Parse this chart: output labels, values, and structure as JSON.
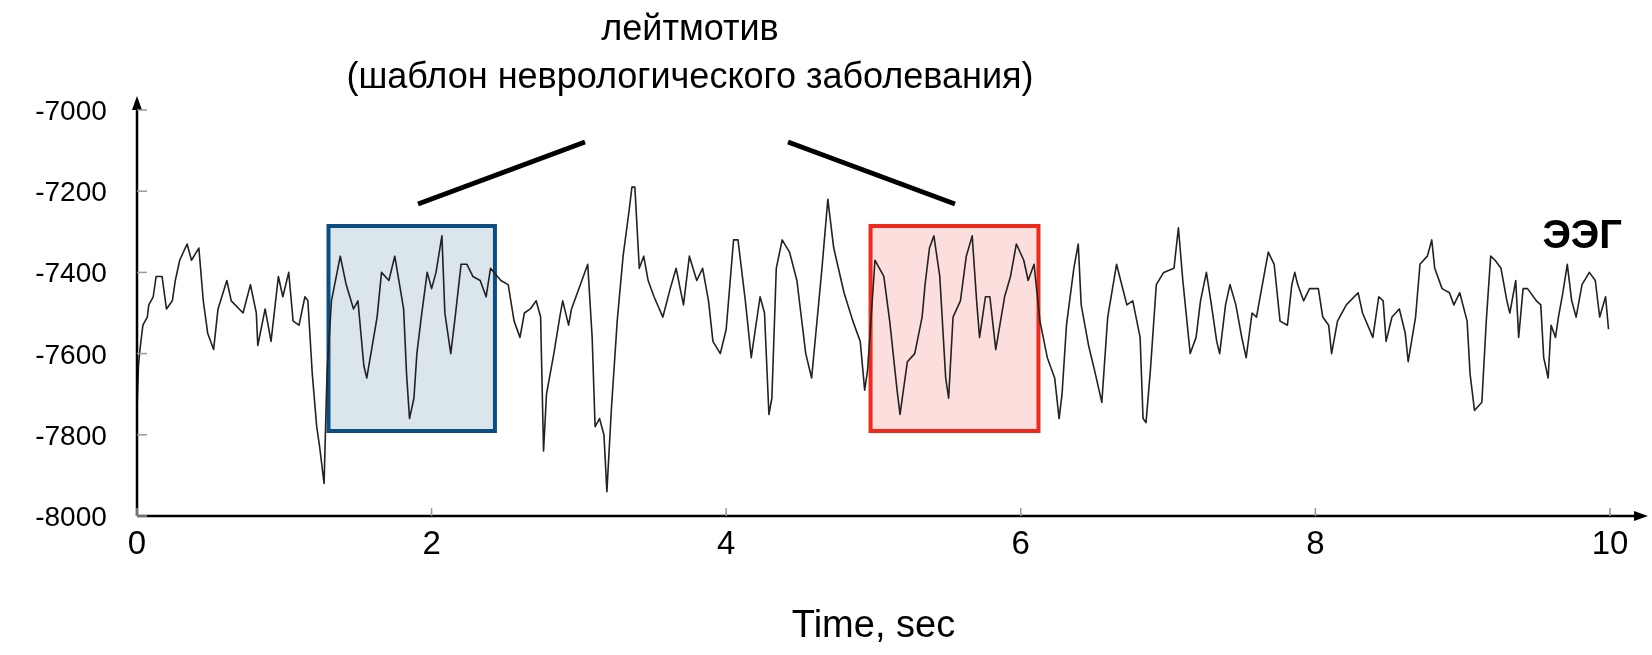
{
  "chart_data": {
    "type": "line",
    "xlabel": "Time, sec",
    "annotations": [
      "лейтмотив",
      "(шаблон неврологического заболевания)"
    ],
    "xlim": [
      0,
      10
    ],
    "xticks": [
      0,
      2,
      4,
      6,
      8,
      10
    ],
    "ylim": [
      -8000,
      -7000
    ],
    "yticks": [
      -7000,
      -7200,
      -7400,
      -7600,
      -7800,
      -8000
    ],
    "bands": [
      {
        "axis": "x",
        "from": 1.3,
        "to": 2.43,
        "color": "#0b4f82"
      },
      {
        "axis": "x",
        "from": 4.98,
        "to": 6.12,
        "color": "#ee2a1c"
      }
    ],
    "series": [
      {
        "name": "ЭЭГ",
        "color": "#222222",
        "x": [
          0,
          0.01,
          0.02,
          0.04,
          0.07,
          0.08,
          0.11,
          0.13,
          0.17,
          0.2,
          0.24,
          0.26,
          0.29,
          0.34,
          0.37,
          0.42,
          0.45,
          0.48,
          0.52,
          0.55,
          0.61,
          0.64,
          0.72,
          0.77,
          0.81,
          0.82,
          0.87,
          0.91,
          0.96,
          0.99,
          1.03,
          1.06,
          1.1,
          1.14,
          1.16,
          1.19,
          1.22,
          1.24,
          1.27,
          1.29,
          1.32,
          1.38,
          1.42,
          1.47,
          1.5,
          1.54,
          1.56,
          1.63,
          1.66,
          1.71,
          1.75,
          1.81,
          1.83,
          1.85,
          1.88,
          1.9,
          1.93,
          1.97,
          2,
          2.03,
          2.07,
          2.09,
          2.13,
          2.16,
          2.2,
          2.24,
          2.28,
          2.33,
          2.37,
          2.4,
          2.47,
          2.52,
          2.56,
          2.6,
          2.63,
          2.67,
          2.71,
          2.74,
          2.76,
          2.78,
          2.83,
          2.87,
          2.89,
          2.93,
          2.95,
          3.03,
          3.06,
          3.09,
          3.11,
          3.14,
          3.17,
          3.19,
          3.22,
          3.26,
          3.3,
          3.34,
          3.36,
          3.38,
          3.41,
          3.44,
          3.47,
          3.51,
          3.57,
          3.62,
          3.66,
          3.71,
          3.75,
          3.8,
          3.84,
          3.88,
          3.91,
          3.96,
          4,
          4.05,
          4.08,
          4.13,
          4.17,
          4.23,
          4.26,
          4.29,
          4.31,
          4.34,
          4.38,
          4.43,
          4.48,
          4.54,
          4.58,
          4.65,
          4.69,
          4.73,
          4.8,
          4.86,
          4.91,
          4.94,
          4.96,
          5.01,
          5.07,
          5.11,
          5.16,
          5.18,
          5.23,
          5.28,
          5.33,
          5.35,
          5.38,
          5.41,
          5.45,
          5.49,
          5.51,
          5.54,
          5.59,
          5.63,
          5.67,
          5.7,
          5.72,
          5.76,
          5.79,
          5.83,
          5.89,
          5.93,
          5.97,
          6.02,
          6.05,
          6.09,
          6.13,
          6.18,
          6.23,
          6.26,
          6.28,
          6.31,
          6.36,
          6.39,
          6.41,
          6.46,
          6.5,
          6.55,
          6.59,
          6.65,
          6.72,
          6.76,
          6.81,
          6.83,
          6.85,
          6.88,
          6.92,
          6.97,
          7.04,
          7.07,
          7.1,
          7.15,
          7.19,
          7.22,
          7.26,
          7.29,
          7.33,
          7.35,
          7.39,
          7.42,
          7.46,
          7.5,
          7.53,
          7.57,
          7.6,
          7.63,
          7.68,
          7.72,
          7.76,
          7.81,
          7.84,
          7.86,
          7.88,
          7.92,
          7.96,
          8.02,
          8.05,
          8.09,
          8.11,
          8.15,
          8.21,
          8.29,
          8.32,
          8.39,
          8.43,
          8.46,
          8.48,
          8.52,
          8.57,
          8.61,
          8.63,
          8.68,
          8.71,
          8.76,
          8.79,
          8.81,
          8.86,
          8.91,
          8.94,
          8.98,
          9.03,
          9.05,
          9.08,
          9.13,
          9.16,
          9.19,
          9.22,
          9.26,
          9.3,
          9.32,
          9.36,
          9.38,
          9.41,
          9.44,
          9.5,
          9.53,
          9.55,
          9.58,
          9.6,
          9.63,
          9.65,
          9.68,
          9.71,
          9.74,
          9.77,
          9.81,
          9.86,
          9.9,
          9.93,
          9.97,
          9.99
        ],
        "values": [
          -7740,
          -7630,
          -7590,
          -7530,
          -7510,
          -7480,
          -7460,
          -7410,
          -7410,
          -7490,
          -7470,
          -7420,
          -7370,
          -7330,
          -7370,
          -7340,
          -7470,
          -7550,
          -7590,
          -7490,
          -7420,
          -7470,
          -7500,
          -7430,
          -7500,
          -7580,
          -7490,
          -7570,
          -7410,
          -7460,
          -7400,
          -7520,
          -7530,
          -7460,
          -7470,
          -7650,
          -7780,
          -7830,
          -7920,
          -7650,
          -7470,
          -7360,
          -7430,
          -7490,
          -7470,
          -7630,
          -7660,
          -7510,
          -7400,
          -7420,
          -7360,
          -7490,
          -7650,
          -7760,
          -7710,
          -7600,
          -7510,
          -7400,
          -7440,
          -7400,
          -7310,
          -7500,
          -7600,
          -7510,
          -7380,
          -7380,
          -7410,
          -7420,
          -7460,
          -7390,
          -7420,
          -7430,
          -7520,
          -7560,
          -7500,
          -7490,
          -7470,
          -7510,
          -7840,
          -7700,
          -7600,
          -7510,
          -7470,
          -7530,
          -7490,
          -7410,
          -7380,
          -7560,
          -7780,
          -7760,
          -7800,
          -7940,
          -7740,
          -7520,
          -7360,
          -7250,
          -7190,
          -7190,
          -7390,
          -7360,
          -7420,
          -7460,
          -7510,
          -7440,
          -7390,
          -7480,
          -7360,
          -7420,
          -7390,
          -7470,
          -7570,
          -7600,
          -7540,
          -7320,
          -7320,
          -7470,
          -7610,
          -7460,
          -7500,
          -7750,
          -7710,
          -7390,
          -7320,
          -7350,
          -7420,
          -7600,
          -7660,
          -7390,
          -7220,
          -7340,
          -7450,
          -7520,
          -7570,
          -7690,
          -7640,
          -7370,
          -7410,
          -7520,
          -7690,
          -7750,
          -7620,
          -7600,
          -7510,
          -7430,
          -7340,
          -7310,
          -7410,
          -7660,
          -7710,
          -7510,
          -7470,
          -7360,
          -7310,
          -7470,
          -7560,
          -7460,
          -7460,
          -7590,
          -7460,
          -7410,
          -7330,
          -7370,
          -7420,
          -7380,
          -7520,
          -7610,
          -7660,
          -7760,
          -7700,
          -7530,
          -7390,
          -7330,
          -7480,
          -7580,
          -7640,
          -7720,
          -7510,
          -7380,
          -7480,
          -7470,
          -7560,
          -7760,
          -7770,
          -7640,
          -7430,
          -7400,
          -7390,
          -7290,
          -7420,
          -7600,
          -7560,
          -7470,
          -7400,
          -7470,
          -7570,
          -7600,
          -7480,
          -7430,
          -7480,
          -7560,
          -7610,
          -7500,
          -7510,
          -7450,
          -7350,
          -7380,
          -7520,
          -7530,
          -7430,
          -7400,
          -7430,
          -7470,
          -7440,
          -7440,
          -7510,
          -7530,
          -7600,
          -7520,
          -7480,
          -7450,
          -7500,
          -7560,
          -7460,
          -7470,
          -7570,
          -7510,
          -7490,
          -7550,
          -7620,
          -7510,
          -7380,
          -7360,
          -7320,
          -7390,
          -7440,
          -7450,
          -7480,
          -7450,
          -7520,
          -7650,
          -7740,
          -7720,
          -7520,
          -7360,
          -7370,
          -7390,
          -7470,
          -7500,
          -7420,
          -7560,
          -7440,
          -7440,
          -7470,
          -7480,
          -7610,
          -7660,
          -7530,
          -7560,
          -7510,
          -7450,
          -7380,
          -7470,
          -7510,
          -7430,
          -7400,
          -7420,
          -7510,
          -7460,
          -7540
        ]
      }
    ]
  }
}
